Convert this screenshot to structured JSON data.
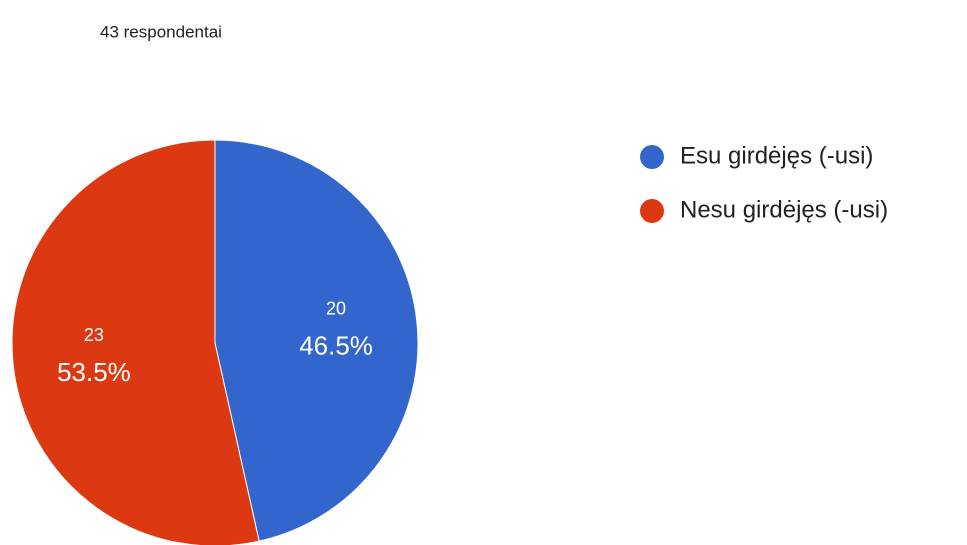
{
  "chart_data": {
    "type": "pie",
    "subtitle": "43 respondentai",
    "categories": [
      "Esu girdėjęs (-usi)",
      "Nesu girdėjęs (-usi)"
    ],
    "values": [
      20,
      23
    ],
    "percentages": [
      46.5,
      53.5
    ],
    "percentage_labels": [
      "46.5%",
      "53.5%"
    ],
    "colors": [
      "#3366cc",
      "#dc3912"
    ],
    "legend": "right"
  }
}
